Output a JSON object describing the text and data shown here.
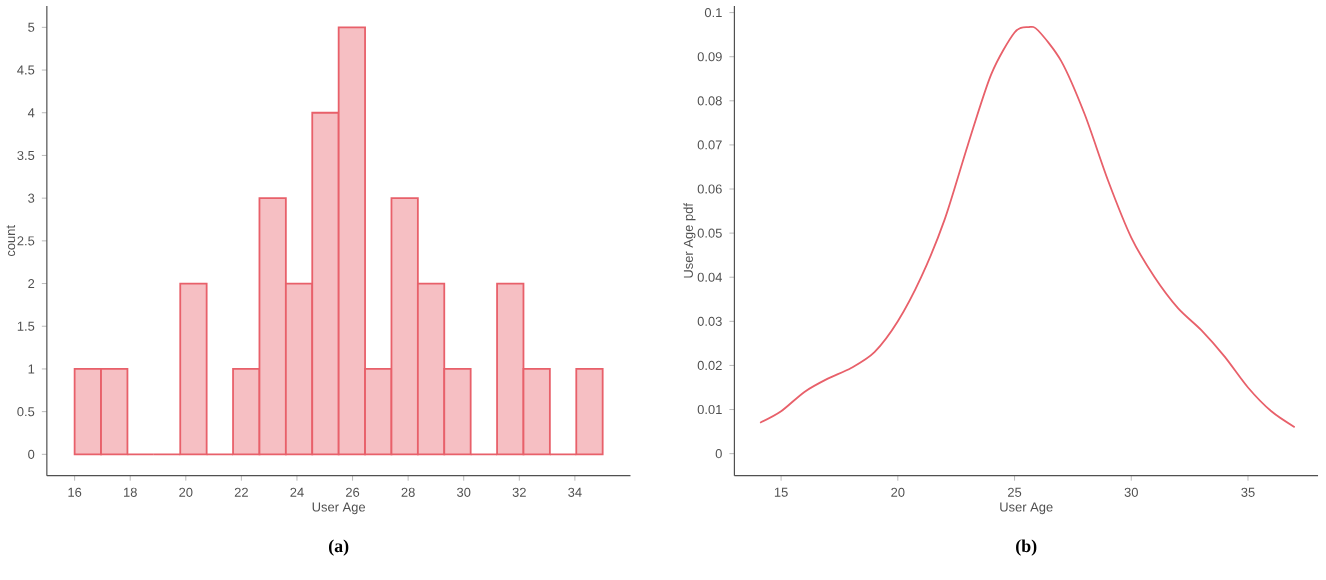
{
  "chart_data": [
    {
      "type": "histogram",
      "xlabel": "User Age",
      "ylabel": "count",
      "color": "#e8606a",
      "bins": [
        16,
        16.95,
        17.9,
        18.85,
        19.8,
        20.75,
        21.7,
        22.65,
        23.6,
        24.55,
        25.5,
        26.45,
        27.4,
        28.35,
        29.3,
        30.25,
        31.2,
        32.15,
        33.1,
        34.05,
        35
      ],
      "values": [
        1,
        1,
        0,
        0,
        2,
        0,
        1,
        3,
        2,
        4,
        5,
        1,
        3,
        2,
        1,
        0,
        2,
        1,
        0,
        1
      ],
      "xlim": [
        15,
        36
      ],
      "ylim": [
        -0.25,
        5.25
      ],
      "xticks": [
        16,
        18,
        20,
        22,
        24,
        26,
        28,
        30,
        32,
        34
      ],
      "yticks": [
        0,
        0.5,
        1,
        1.5,
        2,
        2.5,
        3,
        3.5,
        4,
        4.5,
        5
      ],
      "annotations": [
        "(a)"
      ]
    },
    {
      "type": "line",
      "xlabel": "User Age",
      "ylabel": "User Age pdf",
      "color": "#e8606a",
      "x": [
        14.1,
        15,
        16,
        17,
        18,
        19,
        20,
        21,
        22,
        23,
        24,
        25,
        25.6,
        26,
        27,
        28,
        29,
        30,
        31,
        32,
        33,
        34,
        35,
        36,
        37
      ],
      "values": [
        0.007,
        0.0096,
        0.014,
        0.017,
        0.0194,
        0.023,
        0.03,
        0.04,
        0.053,
        0.07,
        0.086,
        0.0955,
        0.0967,
        0.096,
        0.089,
        0.077,
        0.062,
        0.049,
        0.04,
        0.033,
        0.028,
        0.022,
        0.015,
        0.0096,
        0.006
      ],
      "xlim": [
        13,
        38
      ],
      "ylim": [
        -0.005,
        0.1015
      ],
      "xticks": [
        15,
        20,
        25,
        30,
        35
      ],
      "yticks": [
        0,
        0.01,
        0.02,
        0.03,
        0.04,
        0.05,
        0.06,
        0.07,
        0.08,
        0.09,
        0.1
      ],
      "annotations": [
        "(b)"
      ]
    }
  ]
}
